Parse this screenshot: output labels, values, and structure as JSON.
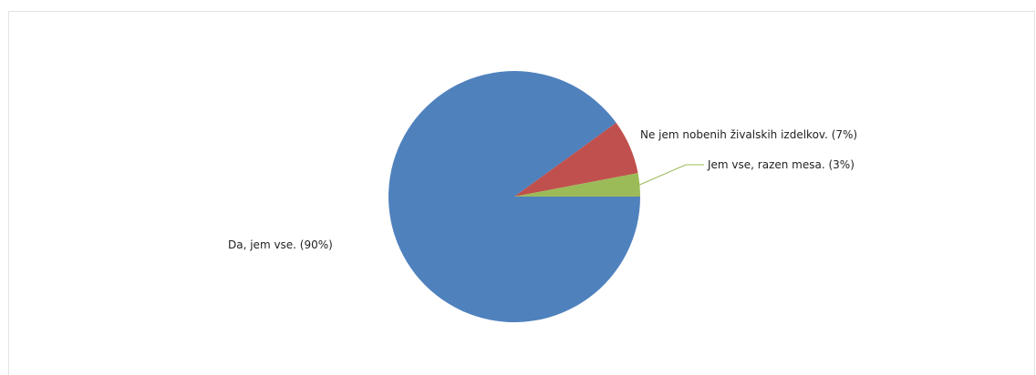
{
  "chart_data": {
    "type": "pie",
    "title": "",
    "slices": [
      {
        "label": "Da, jem vse. (90%)",
        "value": 90,
        "color": "#4f81bd"
      },
      {
        "label": "Ne jem nobenih živalskih izdelkov. (7%)",
        "value": 7,
        "color": "#c0504d"
      },
      {
        "label": "Jem vse, razen mesa. (3%)",
        "value": 3,
        "color": "#9bbb59"
      }
    ],
    "legend": "none"
  }
}
